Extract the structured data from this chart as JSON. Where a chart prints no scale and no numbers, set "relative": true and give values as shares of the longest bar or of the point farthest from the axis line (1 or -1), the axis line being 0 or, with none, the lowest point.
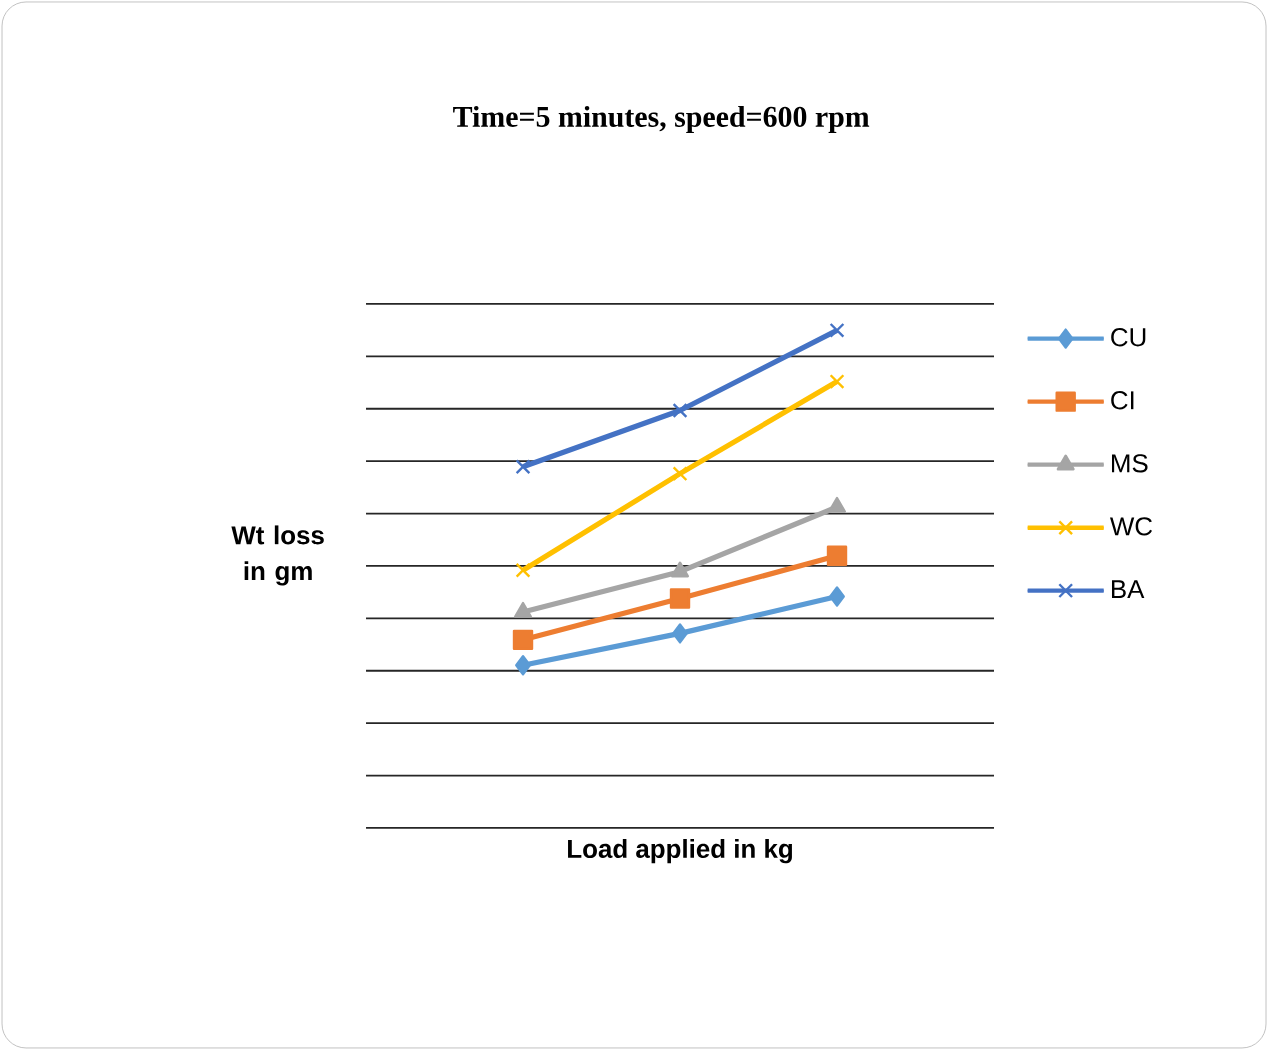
{
  "chart_data": {
    "type": "line",
    "title": "Time=5 minutes, speed=600 rpm",
    "xlabel": "Load applied in kg",
    "ylabel": "Wt loss in gm",
    "relative": true,
    "grid": "y",
    "legend": "right",
    "categories": [
      null,
      null,
      null
    ],
    "series": [
      {
        "name": "CU",
        "color": "#5b9bd5",
        "marker": "diamond",
        "values": [
          0.327,
          0.391,
          0.465
        ]
      },
      {
        "name": "CI",
        "color": "#ed7d31",
        "marker": "square",
        "values": [
          0.378,
          0.461,
          0.547
        ]
      },
      {
        "name": "MS",
        "color": "#a5a5a5",
        "marker": "triangle",
        "values": [
          0.434,
          0.515,
          0.645
        ]
      },
      {
        "name": "WC",
        "color": "#ffc000",
        "marker": "cross",
        "values": [
          0.518,
          0.712,
          0.897
        ]
      },
      {
        "name": "BA",
        "color": "#4472c4",
        "marker": "cross",
        "values": [
          0.726,
          0.839,
          1
        ]
      }
    ]
  }
}
